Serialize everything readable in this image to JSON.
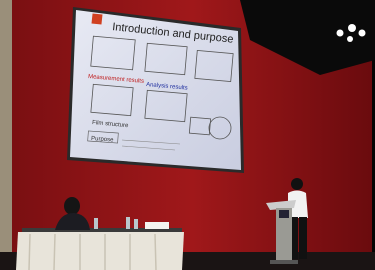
{
  "slide": {
    "title": "Introduction and purpose",
    "labels": [
      "Measurement results",
      "Analysis results",
      "Film structure",
      "Purpose"
    ]
  }
}
